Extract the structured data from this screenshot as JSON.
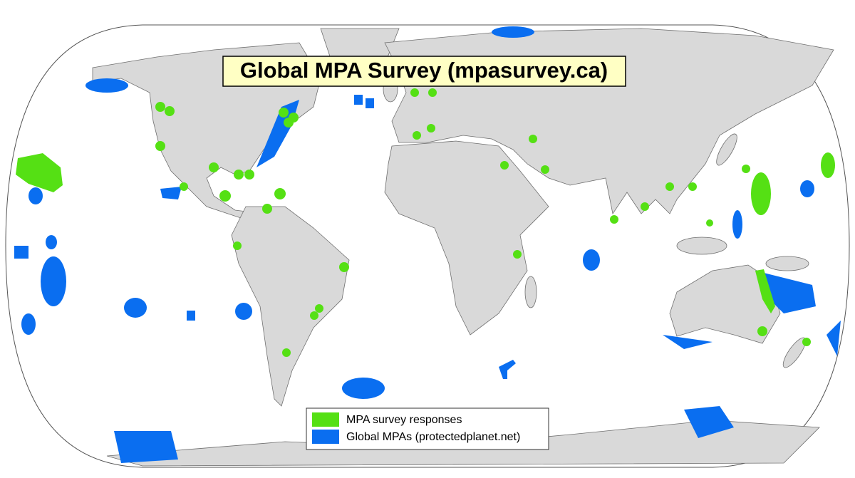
{
  "title": "Global MPA Survey (mpasurvey.ca)",
  "legend": [
    {
      "label": "MPA survey responses",
      "color": "#55e014"
    },
    {
      "label": "Global MPAs (protectedplanet.net)",
      "color": "#0a6ef0"
    }
  ]
}
